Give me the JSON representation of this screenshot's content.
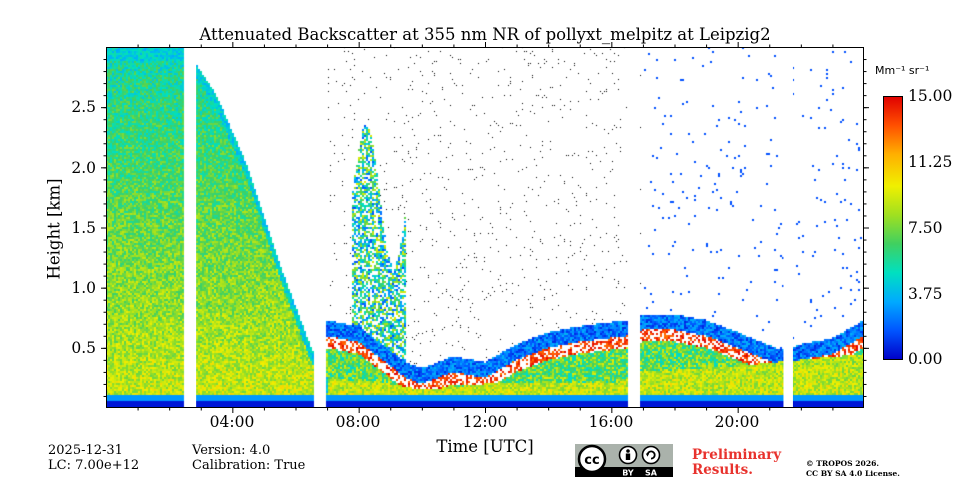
{
  "chart_data": {
    "type": "heatmap",
    "title": "Attenuated Backscatter at 355 nm NR of pollyxt_melpitz at Leipzig2",
    "xlabel": "Time [UTC]",
    "ylabel": "Height [km]",
    "x_unit": "hours UTC",
    "xlim": [
      0,
      24
    ],
    "ylim": [
      0,
      3.0
    ],
    "xticks": [
      4,
      8,
      12,
      16,
      20
    ],
    "xtick_labels": [
      "04:00",
      "08:00",
      "12:00",
      "16:00",
      "20:00"
    ],
    "yticks": [
      0.5,
      1.0,
      1.5,
      2.0,
      2.5
    ],
    "ytick_labels": [
      "0.5",
      "1.0",
      "1.5",
      "2.0",
      "2.5"
    ],
    "colorbar": {
      "unit": "Mm⁻¹ sr⁻¹",
      "range": [
        0,
        15
      ],
      "ticks": [
        0,
        3.75,
        7.5,
        11.25,
        15
      ],
      "tick_labels": [
        "0.00",
        "3.75",
        "7.50",
        "11.25",
        "15.00"
      ],
      "colormap": [
        "#0000c8",
        "#0055ff",
        "#00aaff",
        "#00e0c0",
        "#40d060",
        "#a0e020",
        "#f0f000",
        "#ffb000",
        "#ff5000",
        "#e00000"
      ]
    },
    "data_gaps_hours": [
      [
        2.5,
        2.85
      ],
      [
        6.6,
        6.95
      ],
      [
        16.55,
        16.9
      ],
      [
        21.45,
        21.75
      ]
    ],
    "scene": {
      "aerosol_layer_top_km": [
        [
          0,
          3.0
        ],
        [
          2.5,
          3.0
        ],
        [
          3.5,
          2.6
        ],
        [
          4.5,
          2.0
        ],
        [
          5.5,
          1.2
        ],
        [
          6.5,
          0.5
        ],
        [
          7.0,
          0.25
        ],
        [
          9.0,
          0.2
        ],
        [
          10.0,
          0.15
        ],
        [
          12.0,
          0.2
        ],
        [
          16.0,
          0.2
        ],
        [
          17.0,
          0.3
        ],
        [
          20.0,
          0.35
        ],
        [
          24.0,
          0.45
        ]
      ],
      "cloud_base_km": [
        [
          6.95,
          0.55
        ],
        [
          8.0,
          0.5
        ],
        [
          9.5,
          0.2
        ],
        [
          10.0,
          0.15
        ],
        [
          11.0,
          0.25
        ],
        [
          12.0,
          0.2
        ],
        [
          13.0,
          0.35
        ],
        [
          14.0,
          0.45
        ],
        [
          15.0,
          0.5
        ],
        [
          16.5,
          0.55
        ],
        [
          17.0,
          0.6
        ],
        [
          18.0,
          0.6
        ],
        [
          19.0,
          0.55
        ],
        [
          20.0,
          0.45
        ],
        [
          21.4,
          0.3
        ],
        [
          22.0,
          0.35
        ],
        [
          23.0,
          0.4
        ],
        [
          24.0,
          0.55
        ]
      ],
      "convective_cloud_hours": [
        7.8,
        9.5
      ],
      "max_cloud_top_km": 2.35
    }
  },
  "footer": {
    "date": "2025-12-31",
    "lidar_constant": "LC: 7.00e+12",
    "version": "Version: 4.0",
    "calibration": "Calibration: True",
    "preliminary_line1": "Preliminary",
    "preliminary_line2": "Results.",
    "copyright_line1": "© TROPOS 2026.",
    "copyright_line2": "CC BY SA 4.0 License.",
    "license_badge": "cc-by-sa-icon",
    "badge_by": "BY",
    "badge_sa": "SA"
  }
}
